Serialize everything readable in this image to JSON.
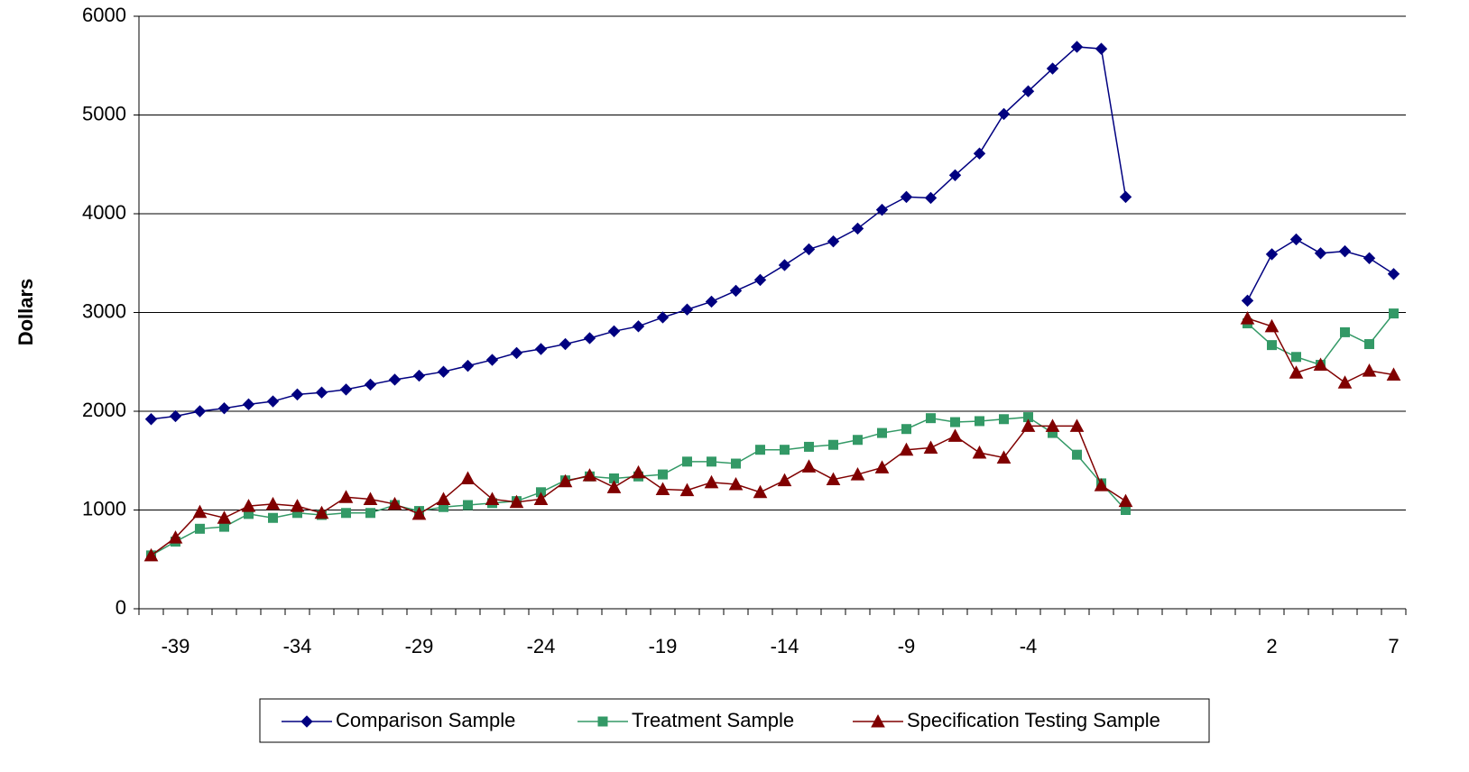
{
  "chart_data": {
    "type": "line",
    "y_label": "Dollars",
    "categories": [
      null,
      "-39",
      null,
      null,
      null,
      null,
      "-34",
      null,
      null,
      null,
      null,
      "-29",
      null,
      null,
      null,
      null,
      "-24",
      null,
      null,
      null,
      null,
      "-19",
      null,
      null,
      null,
      null,
      "-14",
      null,
      null,
      null,
      null,
      "-9",
      null,
      null,
      null,
      null,
      "-4",
      null,
      null,
      null,
      null,
      null,
      null,
      null,
      null,
      null,
      "2",
      null,
      null,
      null,
      null,
      "7"
    ],
    "series": [
      {
        "name": "Comparison Sample",
        "color": "#000080",
        "marker": "diamond",
        "values": [
          1920,
          1950,
          2000,
          2030,
          2070,
          2100,
          2170,
          2190,
          2220,
          2270,
          2320,
          2360,
          2400,
          2460,
          2520,
          2590,
          2630,
          2680,
          2740,
          2810,
          2860,
          2950,
          3030,
          3110,
          3220,
          3330,
          3480,
          3640,
          3720,
          3850,
          4040,
          4170,
          4160,
          4390,
          4610,
          5010,
          5240,
          5470,
          5690,
          5670,
          4170,
          null,
          null,
          null,
          null,
          3120,
          3590,
          3740,
          3600,
          3620,
          3550,
          3390
        ]
      },
      {
        "name": "Treatment Sample",
        "color": "#339966",
        "marker": "square",
        "values": [
          540,
          680,
          810,
          830,
          960,
          920,
          970,
          950,
          970,
          970,
          1050,
          990,
          1030,
          1050,
          1070,
          1090,
          1180,
          1300,
          1340,
          1320,
          1340,
          1360,
          1490,
          1490,
          1470,
          1610,
          1610,
          1640,
          1660,
          1710,
          1780,
          1820,
          1930,
          1890,
          1900,
          1920,
          1940,
          1780,
          1560,
          1270,
          1000,
          null,
          null,
          null,
          null,
          2890,
          2670,
          2550,
          2470,
          2800,
          2680,
          2990
        ]
      },
      {
        "name": "Specification Testing Sample",
        "color": "#800000",
        "marker": "triangle",
        "values": [
          540,
          720,
          980,
          920,
          1040,
          1060,
          1040,
          970,
          1130,
          1110,
          1060,
          960,
          1110,
          1320,
          1110,
          1080,
          1110,
          1290,
          1350,
          1230,
          1380,
          1210,
          1200,
          1280,
          1260,
          1180,
          1300,
          1440,
          1310,
          1360,
          1430,
          1610,
          1630,
          1750,
          1580,
          1530,
          1850,
          1850,
          1850,
          1250,
          1090,
          null,
          null,
          null,
          null,
          2940,
          2860,
          2390,
          2470,
          2290,
          2410,
          2370
        ]
      }
    ],
    "ylim": [
      0,
      6000
    ],
    "yticks": [
      0,
      1000,
      2000,
      3000,
      4000,
      5000,
      6000
    ],
    "grid": true,
    "legend": "bottom"
  }
}
